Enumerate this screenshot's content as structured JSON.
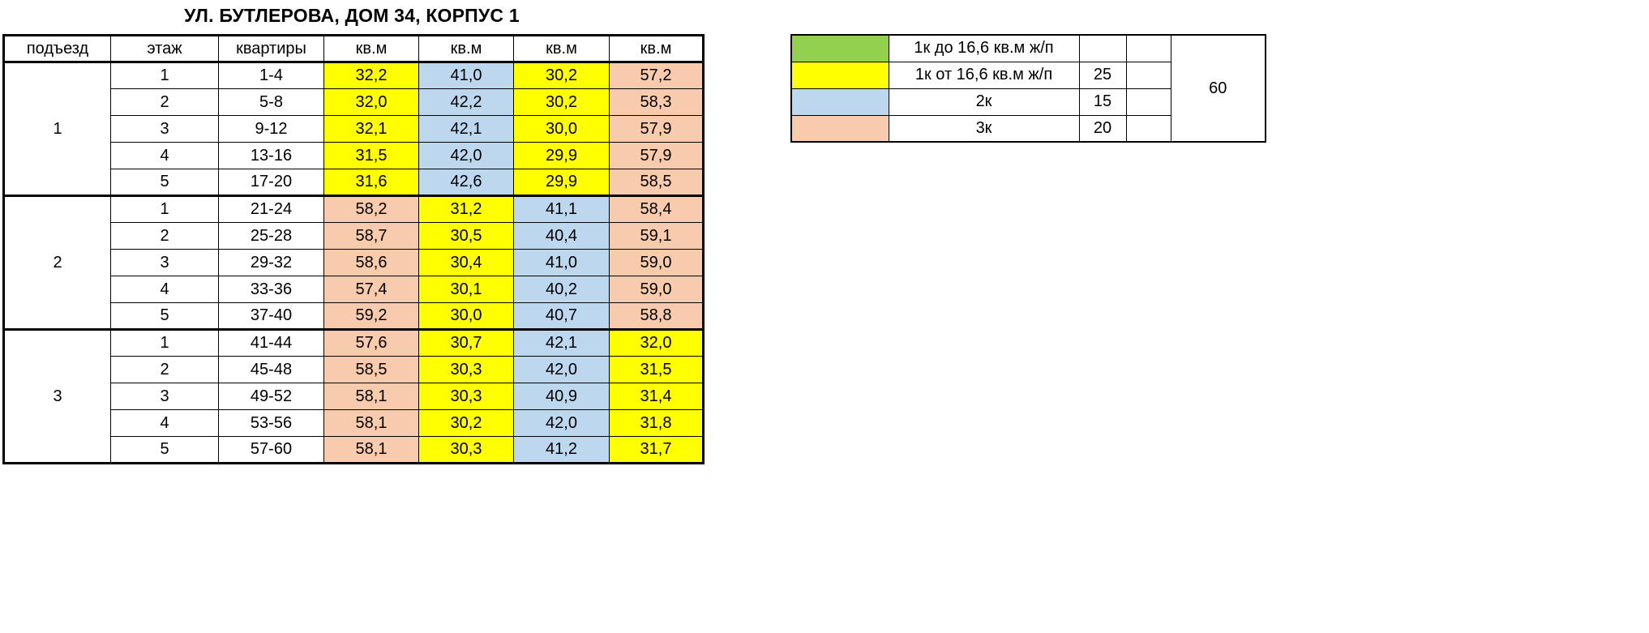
{
  "title": "УЛ. БУТЛЕРОВА, ДОМ 34, КОРПУС 1",
  "colors": {
    "green": "#92D050",
    "yellow": "#FFFF00",
    "blue": "#BDD7EE",
    "peach": "#F8CBAD",
    "white": "#FFFFFF"
  },
  "main_table": {
    "headers": [
      "подъезд",
      "этаж",
      "квартиры",
      "кв.м",
      "кв.м",
      "кв.м",
      "кв.м"
    ],
    "groups": [
      {
        "entrance": "1",
        "rows": [
          {
            "floor": "1",
            "apartments": "1-4",
            "values": [
              {
                "v": "32,2",
                "c": "yellow"
              },
              {
                "v": "41,0",
                "c": "blue"
              },
              {
                "v": "30,2",
                "c": "yellow"
              },
              {
                "v": "57,2",
                "c": "peach"
              }
            ]
          },
          {
            "floor": "2",
            "apartments": "5-8",
            "values": [
              {
                "v": "32,0",
                "c": "yellow"
              },
              {
                "v": "42,2",
                "c": "blue"
              },
              {
                "v": "30,2",
                "c": "yellow"
              },
              {
                "v": "58,3",
                "c": "peach"
              }
            ]
          },
          {
            "floor": "3",
            "apartments": "9-12",
            "values": [
              {
                "v": "32,1",
                "c": "yellow"
              },
              {
                "v": "42,1",
                "c": "blue"
              },
              {
                "v": "30,0",
                "c": "yellow"
              },
              {
                "v": "57,9",
                "c": "peach"
              }
            ]
          },
          {
            "floor": "4",
            "apartments": "13-16",
            "values": [
              {
                "v": "31,5",
                "c": "yellow"
              },
              {
                "v": "42,0",
                "c": "blue"
              },
              {
                "v": "29,9",
                "c": "yellow"
              },
              {
                "v": "57,9",
                "c": "peach"
              }
            ]
          },
          {
            "floor": "5",
            "apartments": "17-20",
            "values": [
              {
                "v": "31,6",
                "c": "yellow"
              },
              {
                "v": "42,6",
                "c": "blue"
              },
              {
                "v": "29,9",
                "c": "yellow"
              },
              {
                "v": "58,5",
                "c": "peach"
              }
            ]
          }
        ]
      },
      {
        "entrance": "2",
        "rows": [
          {
            "floor": "1",
            "apartments": "21-24",
            "values": [
              {
                "v": "58,2",
                "c": "peach"
              },
              {
                "v": "31,2",
                "c": "yellow"
              },
              {
                "v": "41,1",
                "c": "blue"
              },
              {
                "v": "58,4",
                "c": "peach"
              }
            ]
          },
          {
            "floor": "2",
            "apartments": "25-28",
            "values": [
              {
                "v": "58,7",
                "c": "peach"
              },
              {
                "v": "30,5",
                "c": "yellow"
              },
              {
                "v": "40,4",
                "c": "blue"
              },
              {
                "v": "59,1",
                "c": "peach"
              }
            ]
          },
          {
            "floor": "3",
            "apartments": "29-32",
            "values": [
              {
                "v": "58,6",
                "c": "peach"
              },
              {
                "v": "30,4",
                "c": "yellow"
              },
              {
                "v": "41,0",
                "c": "blue"
              },
              {
                "v": "59,0",
                "c": "peach"
              }
            ]
          },
          {
            "floor": "4",
            "apartments": "33-36",
            "values": [
              {
                "v": "57,4",
                "c": "peach"
              },
              {
                "v": "30,1",
                "c": "yellow"
              },
              {
                "v": "40,2",
                "c": "blue"
              },
              {
                "v": "59,0",
                "c": "peach"
              }
            ]
          },
          {
            "floor": "5",
            "apartments": "37-40",
            "values": [
              {
                "v": "59,2",
                "c": "peach"
              },
              {
                "v": "30,0",
                "c": "yellow"
              },
              {
                "v": "40,7",
                "c": "blue"
              },
              {
                "v": "58,8",
                "c": "peach"
              }
            ]
          }
        ]
      },
      {
        "entrance": "3",
        "rows": [
          {
            "floor": "1",
            "apartments": "41-44",
            "values": [
              {
                "v": "57,6",
                "c": "peach"
              },
              {
                "v": "30,7",
                "c": "yellow"
              },
              {
                "v": "42,1",
                "c": "blue"
              },
              {
                "v": "32,0",
                "c": "yellow"
              }
            ]
          },
          {
            "floor": "2",
            "apartments": "45-48",
            "values": [
              {
                "v": "58,5",
                "c": "peach"
              },
              {
                "v": "30,3",
                "c": "yellow"
              },
              {
                "v": "42,0",
                "c": "blue"
              },
              {
                "v": "31,5",
                "c": "yellow"
              }
            ]
          },
          {
            "floor": "3",
            "apartments": "49-52",
            "values": [
              {
                "v": "58,1",
                "c": "peach"
              },
              {
                "v": "30,3",
                "c": "yellow"
              },
              {
                "v": "40,9",
                "c": "blue"
              },
              {
                "v": "31,4",
                "c": "yellow"
              }
            ]
          },
          {
            "floor": "4",
            "apartments": "53-56",
            "values": [
              {
                "v": "58,1",
                "c": "peach"
              },
              {
                "v": "30,2",
                "c": "yellow"
              },
              {
                "v": "42,0",
                "c": "blue"
              },
              {
                "v": "31,8",
                "c": "yellow"
              }
            ]
          },
          {
            "floor": "5",
            "apartments": "57-60",
            "values": [
              {
                "v": "58,1",
                "c": "peach"
              },
              {
                "v": "30,3",
                "c": "yellow"
              },
              {
                "v": "41,2",
                "c": "blue"
              },
              {
                "v": "31,7",
                "c": "yellow"
              }
            ]
          }
        ]
      }
    ]
  },
  "legend": {
    "rows": [
      {
        "color": "green",
        "label": "1к до 16,6 кв.м ж/п",
        "count": ""
      },
      {
        "color": "yellow",
        "label": "1к от 16,6 кв.м ж/п",
        "count": "25"
      },
      {
        "color": "blue",
        "label": "2к",
        "count": "15"
      },
      {
        "color": "peach",
        "label": "3к",
        "count": "20"
      }
    ],
    "total": "60"
  }
}
